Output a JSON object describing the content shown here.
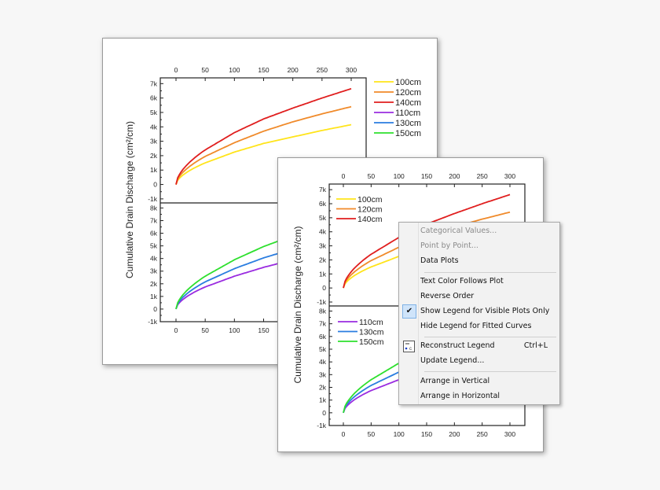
{
  "menu": {
    "items": [
      {
        "label": "Categorical Values...",
        "disabled": true
      },
      {
        "label": "Point by Point...",
        "disabled": true
      },
      {
        "label": "Data Plots",
        "disabled": false
      },
      {
        "label": "Text Color Follows Plot",
        "disabled": false
      },
      {
        "label": "Reverse Order",
        "disabled": false
      },
      {
        "label": "Show Legend for Visible Plots Only",
        "disabled": false,
        "checked": true
      },
      {
        "label": "Hide Legend for Fitted Curves",
        "disabled": false
      },
      {
        "label": "Reconstruct Legend",
        "disabled": false,
        "shortcut": "Ctrl+L",
        "icon": "reconstruct-legend-icon"
      },
      {
        "label": "Update Legend...",
        "disabled": false
      },
      {
        "label": "Arrange in Vertical",
        "disabled": false
      },
      {
        "label": "Arrange in Horizontal",
        "disabled": false
      }
    ],
    "check_glyph": "✔"
  },
  "chart_data": [
    {
      "type": "line",
      "ylabel": "Cumulative Drain Discharge (cm²/cm)",
      "legend_placement": "right, outside",
      "x_ticks": [
        "0",
        "50",
        "100",
        "150",
        "200",
        "250",
        "300"
      ],
      "xlim": [
        0,
        300
      ],
      "panels": [
        {
          "ylim": [
            -1000,
            7000
          ],
          "y_ticks": [
            "-1k",
            "0",
            "1k",
            "2k",
            "3k",
            "4k",
            "5k",
            "6k",
            "7k"
          ],
          "series": [
            {
              "name": "100cm",
              "color": "#ffe41a",
              "x": [
                0,
                50,
                100,
                150,
                200,
                250,
                300
              ],
              "y": [
                0,
                1500,
                2250,
                2850,
                3300,
                3750,
                4150
              ]
            },
            {
              "name": "120cm",
              "color": "#f08a2a",
              "x": [
                0,
                50,
                100,
                150,
                200,
                250,
                300
              ],
              "y": [
                0,
                1950,
                2900,
                3700,
                4350,
                4900,
                5400
              ]
            },
            {
              "name": "140cm",
              "color": "#e01e1e",
              "x": [
                0,
                50,
                100,
                150,
                200,
                250,
                300
              ],
              "y": [
                0,
                2400,
                3600,
                4550,
                5300,
                6000,
                6650
              ]
            }
          ]
        },
        {
          "ylim": [
            -1000,
            8000
          ],
          "y_ticks": [
            "-1k",
            "0",
            "1k",
            "2k",
            "3k",
            "4k",
            "5k",
            "6k",
            "7k",
            "8k"
          ],
          "series": [
            {
              "name": "110cm",
              "color": "#9a2be0",
              "x": [
                0,
                50,
                100,
                150,
                200,
                250,
                300
              ],
              "y": [
                0,
                1750,
                2600,
                3300,
                3900,
                4400,
                4850
              ]
            },
            {
              "name": "130cm",
              "color": "#2a7de0",
              "x": [
                0,
                50,
                100,
                150,
                200,
                250,
                300
              ],
              "y": [
                0,
                2150,
                3200,
                4050,
                4750,
                5350,
                5950
              ]
            },
            {
              "name": "150cm",
              "color": "#2ee02e",
              "x": [
                0,
                50,
                100,
                150,
                200,
                250,
                300
              ],
              "y": [
                0,
                2600,
                3900,
                4950,
                5800,
                6550,
                7250
              ]
            }
          ]
        }
      ],
      "legend": [
        "100cm",
        "120cm",
        "140cm",
        "110cm",
        "130cm",
        "150cm"
      ]
    },
    {
      "type": "line",
      "ylabel": "Cumulative Drain Discharge (cm²/cm)",
      "legend_placement": "top-left, inside each layer",
      "x_ticks": [
        "0",
        "50",
        "100",
        "150",
        "200",
        "250",
        "300"
      ],
      "xlim": [
        0,
        300
      ],
      "panels": [
        {
          "ylim": [
            -1000,
            7000
          ],
          "y_ticks": [
            "-1k",
            "0",
            "1k",
            "2k",
            "3k",
            "4k",
            "5k",
            "6k",
            "7k"
          ],
          "series": [
            {
              "name": "100cm",
              "color": "#ffe41a",
              "x": [
                0,
                50,
                100,
                150,
                200,
                250,
                300
              ],
              "y": [
                0,
                1500,
                2250,
                2850,
                3300,
                3750,
                4150
              ]
            },
            {
              "name": "120cm",
              "color": "#f08a2a",
              "x": [
                0,
                50,
                100,
                150,
                200,
                250,
                300
              ],
              "y": [
                0,
                1950,
                2900,
                3700,
                4350,
                4900,
                5400
              ]
            },
            {
              "name": "140cm",
              "color": "#e01e1e",
              "x": [
                0,
                50,
                100,
                150,
                200,
                250,
                300
              ],
              "y": [
                0,
                2400,
                3600,
                4550,
                5300,
                6000,
                6650
              ]
            }
          ],
          "legend": [
            "100cm",
            "120cm",
            "140cm"
          ]
        },
        {
          "ylim": [
            -1000,
            8000
          ],
          "y_ticks": [
            "-1k",
            "0",
            "1k",
            "2k",
            "3k",
            "4k",
            "5k",
            "6k",
            "7k",
            "8k"
          ],
          "series": [
            {
              "name": "110cm",
              "color": "#9a2be0",
              "x": [
                0,
                50,
                100,
                150,
                200,
                250,
                300
              ],
              "y": [
                0,
                1750,
                2600,
                3300,
                3900,
                4400,
                4850
              ]
            },
            {
              "name": "130cm",
              "color": "#2a7de0",
              "x": [
                0,
                50,
                100,
                150,
                200,
                250,
                300
              ],
              "y": [
                0,
                2150,
                3200,
                4050,
                4750,
                5350,
                5950
              ]
            },
            {
              "name": "150cm",
              "color": "#2ee02e",
              "x": [
                0,
                50,
                100,
                150,
                200,
                250,
                300
              ],
              "y": [
                0,
                2600,
                3900,
                4950,
                5800,
                6550,
                7250
              ]
            }
          ],
          "legend": [
            "110cm",
            "130cm",
            "150cm"
          ]
        }
      ]
    }
  ]
}
